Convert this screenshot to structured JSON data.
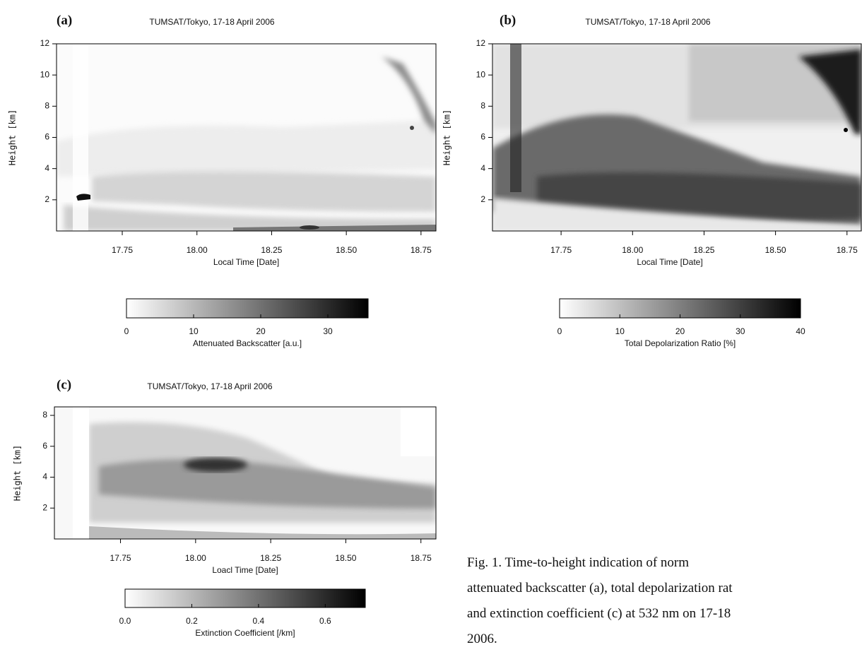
{
  "panels": [
    {
      "label": "(a)",
      "title": "TUMSAT/Tokyo, 17-18 April 2006",
      "xlabel": "Local Time [Date]",
      "ylabel": "Height [km]",
      "xlim": [
        17.53,
        18.8
      ],
      "xticks": [
        17.75,
        {
          "value": 18,
          "label": "18.00"
        },
        18.25,
        {
          "value": 18.5,
          "label": "18.50"
        },
        18.75
      ],
      "ylim": [
        0,
        12
      ],
      "yticks": [
        2,
        4,
        6,
        8,
        10,
        12
      ],
      "colorbar": {
        "label": "Attenuated Backscatter [a.u.]",
        "lim": [
          0,
          36
        ],
        "ticks": [
          0,
          10,
          20,
          30
        ]
      }
    },
    {
      "label": "(b)",
      "title": "TUMSAT/Tokyo, 17-18 April 2006",
      "xlabel": "Local Time [Date]",
      "ylabel": "Height [km]",
      "xlim": [
        17.51,
        18.8
      ],
      "xticks": [
        17.75,
        {
          "value": 18,
          "label": "18.00"
        },
        18.25,
        {
          "value": 18.5,
          "label": "18.50"
        },
        18.75
      ],
      "ylim": [
        0,
        12
      ],
      "yticks": [
        2,
        4,
        6,
        8,
        10,
        12
      ],
      "colorbar": {
        "label": "Total  Depolarization Ratio [%]",
        "lim": [
          0,
          40
        ],
        "ticks": [
          0,
          10,
          20,
          30,
          40
        ]
      }
    },
    {
      "label": "(c)",
      "title": "TUMSAT/Tokyo, 17-18 April 2006",
      "xlabel": "Loacl Time [Date]",
      "ylabel": "Height [km]",
      "xlim": [
        17.53,
        18.8
      ],
      "xticks": [
        17.75,
        {
          "value": 18,
          "label": "18.00"
        },
        18.25,
        {
          "value": 18.5,
          "label": "18.50"
        },
        18.75
      ],
      "ylim": [
        0,
        8.55
      ],
      "yticks": [
        2,
        4,
        6,
        8
      ],
      "colorbar": {
        "label": "Extinction Coefficient [/km]",
        "lim": [
          0,
          0.72
        ],
        "ticks": [
          {
            "value": 0,
            "label": "0.0"
          },
          0.2,
          0.4,
          0.6
        ]
      }
    }
  ],
  "caption": [
    "Fig.  1.  Time-to-height  indication  of  norm",
    "attenuated backscatter (a), total depolarization rat",
    "and extinction coefficient (c) at 532 nm on 17-18",
    "2006."
  ]
}
